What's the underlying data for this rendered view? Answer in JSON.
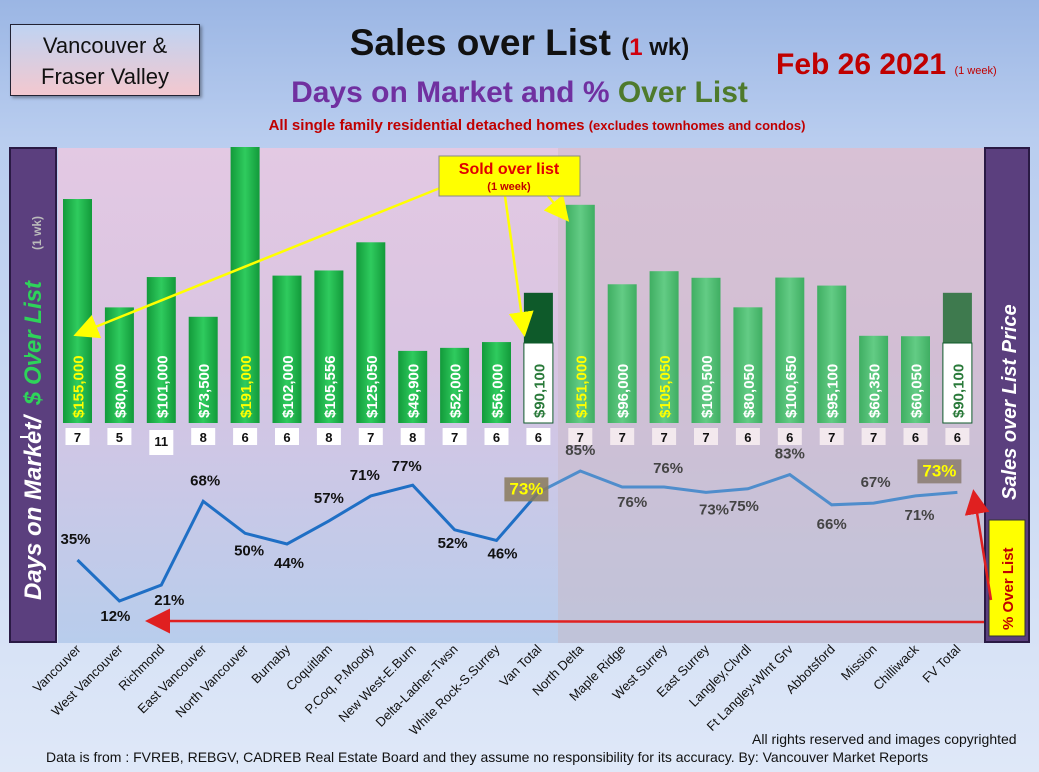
{
  "header": {
    "region_line1": "Vancouver &",
    "region_line2": "Fraser Valley",
    "title": "Sales over List",
    "title_one": "1",
    "title_wk": " wk)",
    "subtitle_a": "Days on Market and % ",
    "subtitle_b": "Over List",
    "subsub_a": "All single family residential detached homes ",
    "subsub_b": "(excludes townhomes and condos)",
    "date": "Feb 26  2021",
    "date_note": "(1 week)"
  },
  "left_panel": {
    "days_label": "Days on Market/",
    "dollar_label": "$ Over List",
    "period_label": "(1 wk)"
  },
  "right_panel": {
    "label": "Sales over List Price",
    "pct_label": "% Over List"
  },
  "callout": {
    "line1": "Sold over list",
    "line2": "(1 week)"
  },
  "footer": {
    "source": "Data is from : FVREB, REBGV, CADREB Real Estate Board and they assume no responsibility for its accuracy. By: Vancouver Market Reports",
    "rights": "All rights reserved and  images copyrighted"
  },
  "colors": {
    "bar_green": "#21b24b",
    "bar_green_fv": "#4fbf72",
    "total_dark": "#0e5a2a",
    "line_blue": "#1f6fc5",
    "arrow_red": "#e02020",
    "panel_purple": "#5b3f7e",
    "label_yellow": "#ffff00"
  },
  "chart_data": {
    "type": "bar",
    "categories": [
      "Vancouver",
      "West Vancouver",
      "Richmond",
      "East Vancouver",
      "North Vancouver",
      "Burnaby",
      "Coquitlam",
      "P.Coq, P.Moody",
      "New West-E.Burn",
      "Delta-Ladner-Twsn",
      "White Rock-S.Surrey",
      "Van Total",
      "North Delta",
      "Maple Ridge",
      "West Surrey",
      "East Surrey",
      "Langley,Clvrdl",
      "Ft Langley-Wlnt Grv",
      "Abbotsford",
      "Mission",
      "Chilliwack",
      "FV Total"
    ],
    "series": [
      {
        "values": [
          155000,
          80000,
          101000,
          73500,
          191000,
          102000,
          105556,
          125050,
          49900,
          52000,
          56000,
          90100,
          151000,
          96000,
          105050,
          100500,
          80050,
          100650,
          95100,
          60350,
          60050,
          90100
        ]
      },
      {
        "values": [
          7,
          5,
          11,
          8,
          6,
          6,
          8,
          7,
          8,
          7,
          6,
          6,
          7,
          7,
          7,
          7,
          6,
          6,
          7,
          7,
          6,
          6
        ]
      },
      {
        "values": [
          35,
          12,
          21,
          68,
          50,
          44,
          57,
          71,
          77,
          52,
          46,
          73,
          85,
          76,
          76,
          73,
          75,
          83,
          66,
          67,
          71,
          73
        ]
      }
    ],
    "dollar_labels": [
      "$155,000",
      "$80,000",
      "$101,000",
      "$73,500",
      "$191,000",
      "$102,000",
      "$105,556",
      "$125,050",
      "$49,900",
      "$52,000",
      "$56,000",
      "$90,100",
      "$151,000",
      "$96,000",
      "$105,050",
      "$100,500",
      "$80,050",
      "$100,650",
      "$95,100",
      "$60,350",
      "$60,050",
      "$90,100"
    ],
    "pct_labels": [
      "35%",
      "12%",
      "21%",
      "68%",
      "50%",
      "44%",
      "57%",
      "71%",
      "77%",
      "52%",
      "46%",
      "73%",
      "85%",
      "76%",
      "76%",
      "73%",
      "75%",
      "83%",
      "66%",
      "67%",
      "71%",
      "73%"
    ],
    "dom_labels": [
      "7",
      "5",
      "11",
      "8",
      "6",
      "6",
      "8",
      "7",
      "8",
      "7",
      "6",
      "6",
      "7",
      "7",
      "7",
      "7",
      "6",
      "6",
      "7",
      "7",
      "6",
      "6"
    ],
    "yellow_text_index": [
      0,
      4,
      12,
      14
    ]
  }
}
